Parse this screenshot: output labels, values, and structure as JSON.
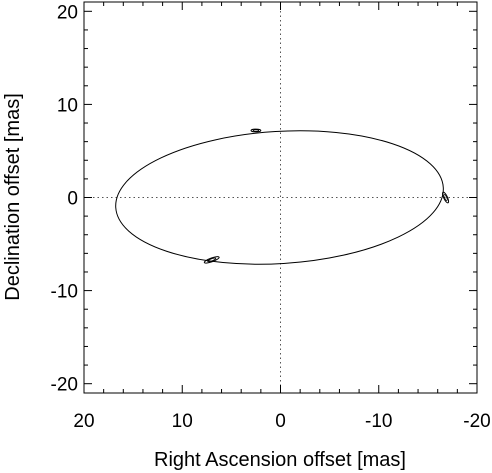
{
  "chart_data": {
    "type": "scatter",
    "title": "",
    "xlabel": "Right Ascension offset [mas]",
    "ylabel": "Declination offset [mas]",
    "xlim": [
      20,
      -20
    ],
    "ylim": [
      -21,
      21
    ],
    "x_ticks": [
      20,
      10,
      0,
      -10,
      -20
    ],
    "y_ticks": [
      20,
      10,
      0,
      -10,
      -20
    ],
    "x_tick_labels": [
      "20",
      "10",
      "0",
      "-10",
      "-20"
    ],
    "y_tick_labels": [
      "20",
      "10",
      "0",
      "-10",
      "-20"
    ],
    "grid": false,
    "reference_lines": [
      {
        "orientation": "vertical",
        "value": 0,
        "style": "dotted"
      },
      {
        "orientation": "horizontal",
        "value": 0,
        "style": "dotted"
      }
    ],
    "orbit": {
      "shape": "ellipse",
      "center": [
        0.1,
        0.0
      ],
      "semi_axis_x": 16.7,
      "semi_axis_y": 7.1,
      "rotation_deg": -3.5
    },
    "error_ellipses": [
      {
        "x": 2.5,
        "y": 7.2,
        "semi_major": 0.5,
        "semi_minor": 0.15,
        "angle_deg": 0
      },
      {
        "x": -16.8,
        "y": 0.0,
        "semi_major": 0.6,
        "semi_minor": 0.2,
        "angle_deg": 65
      },
      {
        "x": 7.0,
        "y": -6.7,
        "semi_major": 0.8,
        "semi_minor": 0.2,
        "angle_deg": -20
      }
    ]
  }
}
